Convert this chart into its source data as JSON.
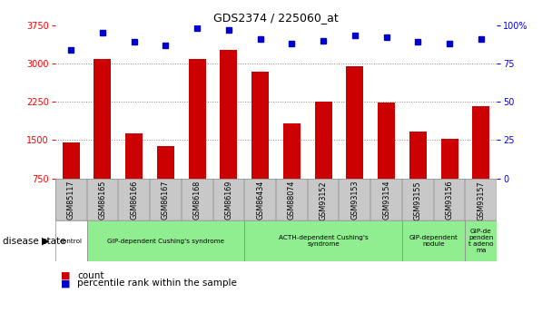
{
  "title": "GDS2374 / 225060_at",
  "samples": [
    "GSM85117",
    "GSM86165",
    "GSM86166",
    "GSM86167",
    "GSM86168",
    "GSM86169",
    "GSM86434",
    "GSM88074",
    "GSM93152",
    "GSM93153",
    "GSM93154",
    "GSM93155",
    "GSM93156",
    "GSM93157"
  ],
  "counts": [
    1450,
    3080,
    1630,
    1380,
    3090,
    3270,
    2840,
    1820,
    2250,
    2940,
    2240,
    1670,
    1530,
    2170
  ],
  "percentile": [
    84,
    95,
    89,
    87,
    98,
    97,
    91,
    88,
    90,
    93,
    92,
    89,
    88,
    91
  ],
  "ylim_left": [
    750,
    3750
  ],
  "ylim_right": [
    0,
    100
  ],
  "yticks_left": [
    750,
    1500,
    2250,
    3000,
    3750
  ],
  "yticks_right": [
    0,
    25,
    50,
    75,
    100
  ],
  "yticklabels_right": [
    "0",
    "25",
    "50",
    "75",
    "100%"
  ],
  "bar_color": "#cc0000",
  "dot_color": "#0000cc",
  "groups": [
    {
      "label": "control",
      "start": 0,
      "end": 0,
      "color": "#ffffff"
    },
    {
      "label": "GIP-dependent Cushing's syndrome",
      "start": 1,
      "end": 5,
      "color": "#90ee90"
    },
    {
      "label": "ACTH-dependent Cushing's\nsyndrome",
      "start": 6,
      "end": 10,
      "color": "#90ee90"
    },
    {
      "label": "GIP-dependent\nnodule",
      "start": 11,
      "end": 12,
      "color": "#90ee90"
    },
    {
      "label": "GIP-de\npenden\nt adeno\nma",
      "start": 13,
      "end": 13,
      "color": "#90ee90"
    }
  ],
  "legend_count_label": "count",
  "legend_pct_label": "percentile rank within the sample"
}
